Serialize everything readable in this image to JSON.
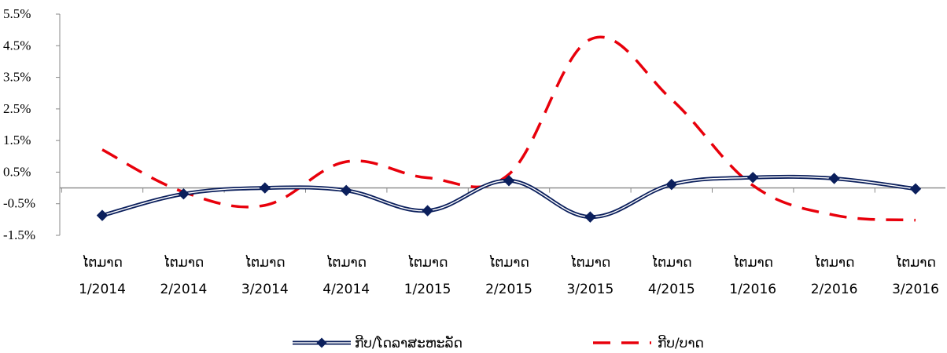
{
  "chart_data": {
    "type": "line",
    "categories": [
      [
        "ໄຕມາດ",
        "1/2014"
      ],
      [
        "ໄຕມາດ",
        "2/2014"
      ],
      [
        "ໄຕມາດ",
        "3/2014"
      ],
      [
        "ໄຕມາດ",
        "4/2014"
      ],
      [
        "ໄຕມາດ",
        "1/2015"
      ],
      [
        "ໄຕມາດ",
        "2/2015"
      ],
      [
        "ໄຕມາດ",
        "3/2015"
      ],
      [
        "ໄຕມາດ",
        "4/2015"
      ],
      [
        "ໄຕມາດ",
        "1/2016"
      ],
      [
        "ໄຕມາດ",
        "2/2016"
      ],
      [
        "ໄຕມາດ",
        "3/2016"
      ]
    ],
    "series": [
      {
        "name": "ກີບ/ໂດລາສະຫະລັດ",
        "values": [
          -0.87,
          -0.19,
          0.0,
          -0.08,
          -0.72,
          0.23,
          -0.92,
          0.11,
          0.33,
          0.3,
          -0.03
        ],
        "color": "#0b1f5c",
        "style": "solid-double-marker"
      },
      {
        "name": "ກີບ/ບາດ",
        "values": [
          1.21,
          -0.13,
          -0.55,
          0.83,
          0.32,
          0.43,
          4.7,
          2.8,
          0.08,
          -0.86,
          -1.02
        ],
        "color": "#e8000b",
        "style": "dashed"
      }
    ],
    "yticks": [
      "5.5%",
      "4.5%",
      "3.5%",
      "2.5%",
      "1.5%",
      "0.5%",
      "-0.5%",
      "-1.5%"
    ],
    "ytick_values": [
      5.5,
      4.5,
      3.5,
      2.5,
      1.5,
      0.5,
      -0.5,
      -1.5
    ],
    "ylim": [
      -1.5,
      5.5
    ],
    "xlabel": "",
    "ylabel": "",
    "title": "",
    "legend_position": "bottom",
    "grid": false
  }
}
